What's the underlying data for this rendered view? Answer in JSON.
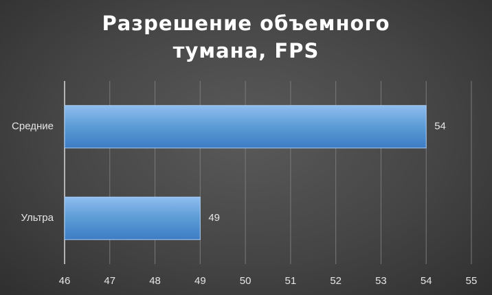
{
  "chart_data": {
    "type": "bar",
    "orientation": "horizontal",
    "title": "Разрешение объемного тумана, FPS",
    "categories": [
      "Средние",
      "Ультра"
    ],
    "values": [
      54,
      49
    ],
    "color": "#5b9bd5",
    "xlim": [
      46,
      55
    ],
    "xticks": [
      46,
      47,
      48,
      49,
      50,
      51,
      52,
      53,
      54,
      55
    ],
    "grid": true
  }
}
